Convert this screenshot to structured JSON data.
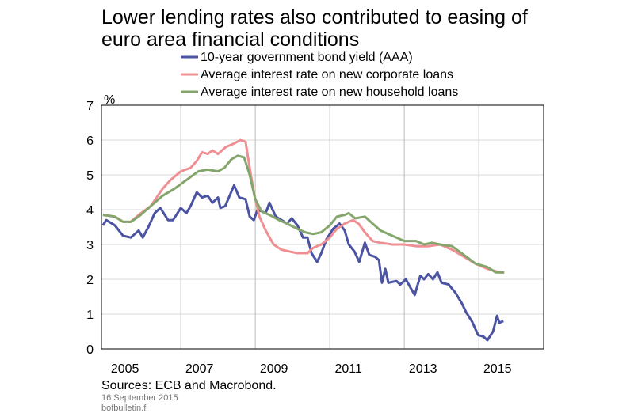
{
  "chart_data": {
    "type": "line",
    "title": [
      "Lower lending rates also contributed to easing of",
      "euro area financial conditions"
    ],
    "y_unit": "%",
    "source": "Sources: ECB and Macrobond.",
    "date": "16 September 2015",
    "site": "bofbulletin.fi",
    "xlim": [
      2004.87,
      2016.74
    ],
    "xticks": [
      2005,
      2007,
      2009,
      2011,
      2013,
      2015
    ],
    "ylim": [
      0,
      7
    ],
    "yticks": [
      0,
      1,
      2,
      3,
      4,
      5,
      6,
      7
    ],
    "grid": true,
    "series": [
      {
        "name": "10-year government bond yield (AAA)",
        "color": "#4b53a3",
        "x": [
          2004.91,
          2005.0,
          2005.23,
          2005.45,
          2005.66,
          2005.87,
          2005.98,
          2006.13,
          2006.3,
          2006.45,
          2006.66,
          2006.79,
          2007.0,
          2007.15,
          2007.26,
          2007.43,
          2007.57,
          2007.72,
          2007.85,
          2008.0,
          2008.06,
          2008.19,
          2008.43,
          2008.57,
          2008.74,
          2008.85,
          2008.96,
          2009.06,
          2009.28,
          2009.38,
          2009.55,
          2009.7,
          2009.85,
          2009.98,
          2010.13,
          2010.28,
          2010.4,
          2010.51,
          2010.66,
          2010.77,
          2010.91,
          2011.09,
          2011.26,
          2011.4,
          2011.51,
          2011.66,
          2011.79,
          2011.94,
          2012.06,
          2012.21,
          2012.32,
          2012.4,
          2012.49,
          2012.57,
          2012.79,
          2012.89,
          2013.04,
          2013.17,
          2013.28,
          2013.43,
          2013.53,
          2013.64,
          2013.77,
          2013.89,
          2014.0,
          2014.19,
          2014.38,
          2014.55,
          2014.66,
          2014.81,
          2014.98,
          2015.13,
          2015.23,
          2015.38,
          2015.49,
          2015.55,
          2015.66
        ],
        "values": [
          3.55,
          3.7,
          3.55,
          3.25,
          3.2,
          3.4,
          3.2,
          3.5,
          3.9,
          4.05,
          3.7,
          3.7,
          4.05,
          3.9,
          4.1,
          4.5,
          4.35,
          4.4,
          4.2,
          4.35,
          4.05,
          4.1,
          4.7,
          4.35,
          4.3,
          3.8,
          3.7,
          4.0,
          3.9,
          4.2,
          3.8,
          3.7,
          3.6,
          3.75,
          3.55,
          3.2,
          3.2,
          2.75,
          2.5,
          2.75,
          3.15,
          3.45,
          3.6,
          3.4,
          3.0,
          2.8,
          2.5,
          3.05,
          2.7,
          2.65,
          2.55,
          1.9,
          2.3,
          1.9,
          1.95,
          1.85,
          2.0,
          1.75,
          1.55,
          2.1,
          2.0,
          2.15,
          2.0,
          2.2,
          1.9,
          1.85,
          1.6,
          1.3,
          1.05,
          0.8,
          0.4,
          0.35,
          0.25,
          0.5,
          0.95,
          0.75,
          0.8
        ]
      },
      {
        "name": "Average interest rate on new corporate loans",
        "color": "#ef8f93",
        "x": [
          2004.91,
          2005.23,
          2005.45,
          2005.66,
          2005.87,
          2006.19,
          2006.51,
          2006.72,
          2007.0,
          2007.26,
          2007.43,
          2007.57,
          2007.72,
          2007.85,
          2008.0,
          2008.21,
          2008.43,
          2008.6,
          2008.74,
          2008.85,
          2008.96,
          2009.11,
          2009.28,
          2009.49,
          2009.7,
          2009.91,
          2010.13,
          2010.4,
          2010.55,
          2010.77,
          2011.0,
          2011.19,
          2011.4,
          2011.62,
          2011.77,
          2011.94,
          2012.15,
          2012.36,
          2012.68,
          2013.0,
          2013.32,
          2013.64,
          2013.96,
          2014.28,
          2014.6,
          2014.91,
          2015.23,
          2015.55,
          2015.68
        ],
        "values": [
          3.85,
          3.8,
          3.65,
          3.65,
          3.85,
          4.1,
          4.6,
          4.85,
          5.1,
          5.2,
          5.4,
          5.65,
          5.6,
          5.7,
          5.6,
          5.8,
          5.9,
          6.0,
          5.95,
          5.2,
          4.5,
          3.8,
          3.4,
          3.0,
          2.85,
          2.8,
          2.75,
          2.75,
          2.9,
          3.0,
          3.2,
          3.45,
          3.6,
          3.7,
          3.6,
          3.35,
          3.1,
          3.05,
          3.0,
          3.0,
          2.95,
          2.95,
          3.0,
          2.85,
          2.65,
          2.45,
          2.3,
          2.2,
          2.2
        ]
      },
      {
        "name": "Average interest rate on new household loans",
        "color": "#84a66c",
        "x": [
          2004.91,
          2005.23,
          2005.45,
          2005.66,
          2005.87,
          2006.19,
          2006.51,
          2006.83,
          2007.15,
          2007.47,
          2007.72,
          2008.0,
          2008.17,
          2008.36,
          2008.53,
          2008.7,
          2008.85,
          2009.0,
          2009.17,
          2009.38,
          2009.64,
          2009.85,
          2010.13,
          2010.34,
          2010.55,
          2010.77,
          2011.0,
          2011.19,
          2011.4,
          2011.51,
          2011.68,
          2011.94,
          2012.15,
          2012.36,
          2012.68,
          2013.0,
          2013.32,
          2013.53,
          2013.74,
          2013.96,
          2014.28,
          2014.6,
          2014.91,
          2015.23,
          2015.45,
          2015.68
        ],
        "values": [
          3.85,
          3.8,
          3.65,
          3.65,
          3.8,
          4.1,
          4.4,
          4.6,
          4.85,
          5.1,
          5.15,
          5.1,
          5.2,
          5.45,
          5.55,
          5.5,
          5.0,
          4.3,
          3.95,
          3.85,
          3.7,
          3.6,
          3.45,
          3.35,
          3.3,
          3.35,
          3.55,
          3.8,
          3.85,
          3.9,
          3.75,
          3.8,
          3.6,
          3.4,
          3.25,
          3.1,
          3.1,
          3.0,
          3.05,
          3.0,
          2.95,
          2.7,
          2.45,
          2.35,
          2.2,
          2.2
        ]
      }
    ]
  }
}
